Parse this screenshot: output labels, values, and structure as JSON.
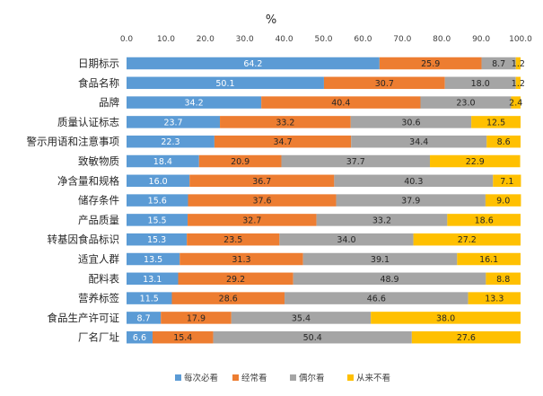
{
  "chart_data": {
    "type": "bar",
    "orientation": "horizontal",
    "stacked": "percent",
    "title": "%",
    "xlim": [
      0,
      100
    ],
    "xticks": [
      "0.0",
      "10.0",
      "20.0",
      "30.0",
      "40.0",
      "50.0",
      "60.0",
      "70.0",
      "80.0",
      "90.0",
      "100.0"
    ],
    "xtick_values": [
      0,
      10,
      20,
      30,
      40,
      50,
      60,
      70,
      80,
      90,
      100
    ],
    "grid": false,
    "legend_position": "bottom",
    "categories": [
      "日期标示",
      "食品名称",
      "品牌",
      "质量认证标志",
      "警示用语和注意事项",
      "致敏物质",
      "净含量和规格",
      "储存条件",
      "产品质量",
      "转基因食品标识",
      "适宜人群",
      "配料表",
      "营养标签",
      "食品生产许可证",
      "厂名厂址"
    ],
    "series": [
      {
        "name": "每次必看",
        "color": "#5B9BD5",
        "label_color": "#ffffff",
        "values": [
          64.2,
          50.1,
          34.2,
          23.7,
          22.3,
          18.4,
          16.0,
          15.6,
          15.5,
          15.3,
          13.5,
          13.1,
          11.5,
          8.7,
          6.6
        ]
      },
      {
        "name": "经常看",
        "color": "#ED7D31",
        "label_color": "#262626",
        "values": [
          25.9,
          30.7,
          40.4,
          33.2,
          34.7,
          20.9,
          36.7,
          37.6,
          32.7,
          23.5,
          31.3,
          29.2,
          28.6,
          17.9,
          15.4
        ]
      },
      {
        "name": "偶尔看",
        "color": "#A5A5A5",
        "label_color": "#262626",
        "values": [
          8.7,
          18.0,
          23.0,
          30.6,
          34.4,
          37.7,
          40.3,
          37.9,
          33.2,
          34.0,
          39.1,
          48.9,
          46.6,
          35.4,
          50.4
        ]
      },
      {
        "name": "从来不看",
        "color": "#FFC000",
        "label_color": "#262626",
        "values": [
          1.2,
          1.2,
          2.4,
          12.5,
          8.6,
          22.9,
          7.1,
          9.0,
          18.6,
          27.2,
          16.1,
          8.8,
          13.3,
          38.0,
          27.6
        ]
      }
    ]
  }
}
